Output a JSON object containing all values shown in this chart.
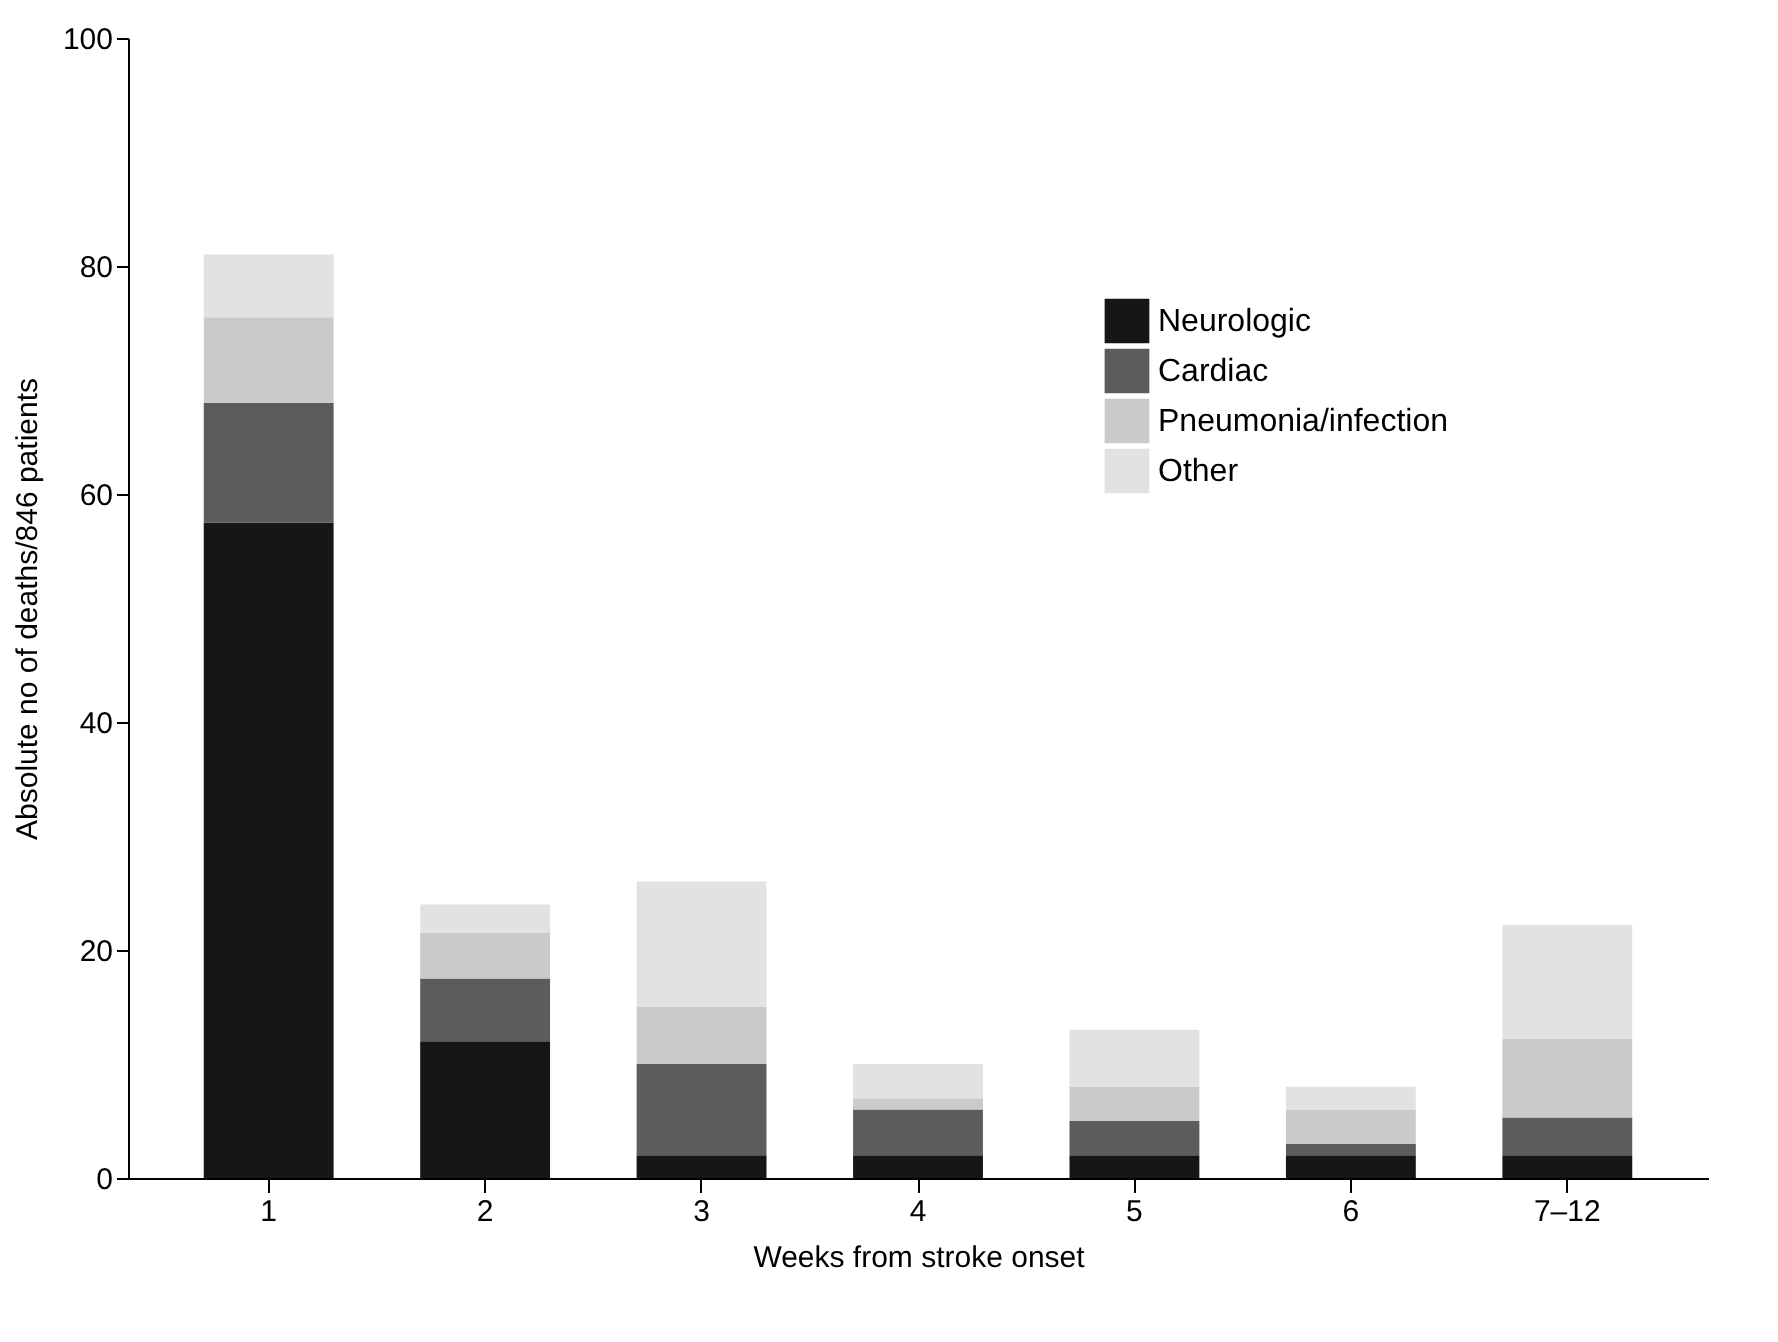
{
  "chart_data": {
    "type": "bar",
    "stacked": true,
    "xlabel": "Weeks from stroke onset",
    "ylabel": "Absolute no of deaths/846 patients",
    "categories": [
      "1",
      "2",
      "3",
      "4",
      "5",
      "6",
      "7–12"
    ],
    "series": [
      {
        "name": "Neurologic",
        "color": "#161616",
        "values": [
          57.5,
          12,
          2,
          2,
          2,
          2,
          2
        ]
      },
      {
        "name": "Cardiac",
        "color": "#5c5c5c",
        "values": [
          10.5,
          5.5,
          8,
          4,
          3,
          1,
          3.3
        ]
      },
      {
        "name": "Pneumonia/infection",
        "color": "#c9cac9",
        "values": [
          7.5,
          4,
          5,
          1,
          3,
          3,
          6.9
        ]
      },
      {
        "name": "Other",
        "color": "#e2e2e2",
        "values": [
          5.5,
          2.5,
          11,
          3,
          5,
          2,
          10
        ]
      }
    ],
    "ylim": [
      0,
      100
    ],
    "yticks": [
      0,
      20,
      40,
      60,
      80,
      100
    ],
    "legend": "top right",
    "grid": false
  }
}
